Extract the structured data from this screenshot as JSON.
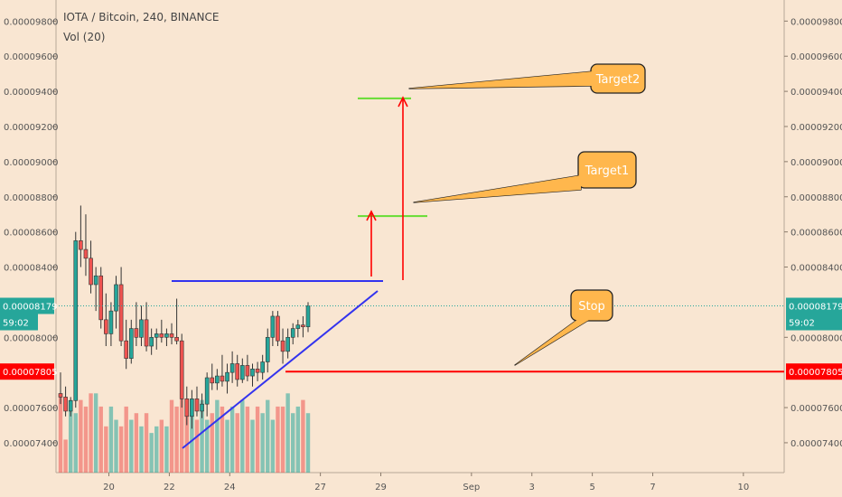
{
  "header": {
    "title": "IOTA / Bitcoin, 240, BINANCE",
    "volume_label": "Vol (20)"
  },
  "chart_data": {
    "type": "candlestick",
    "symbol": "IOTA / Bitcoin",
    "interval": "240",
    "exchange": "BINANCE",
    "y_ticks": [
      "0.00009800",
      "0.00009600",
      "0.00009400",
      "0.00009200",
      "0.00009000",
      "0.00008800",
      "0.00008600",
      "0.00008400",
      "0.00008000",
      "0.00007600",
      "0.00007400"
    ],
    "y_tick_values": [
      9.8e-05,
      9.6e-05,
      9.4e-05,
      9.2e-05,
      9e-05,
      8.8e-05,
      8.6e-05,
      8.4e-05,
      8e-05,
      7.6e-05,
      7.4e-05
    ],
    "ylim": [
      7.23e-05,
      9.92e-05
    ],
    "x_ticks": [
      {
        "label": "20",
        "day": 20
      },
      {
        "label": "22",
        "day": 22
      },
      {
        "label": "24",
        "day": 24
      },
      {
        "label": "27",
        "day": 27
      },
      {
        "label": "29",
        "day": 29
      },
      {
        "label": "Sep",
        "day": 32
      },
      {
        "label": "3",
        "day": 34
      },
      {
        "label": "5",
        "day": 36
      },
      {
        "label": "7",
        "day": 38
      },
      {
        "label": "10",
        "day": 41
      }
    ],
    "xlim": [
      18.25,
      42.35
    ],
    "current_price": {
      "label": "0.00008179",
      "countdown": "59:02",
      "value": 8.179e-05,
      "color": "#26a69a"
    },
    "stop_price": {
      "label": "0.00007805",
      "value": 7.805e-05,
      "color": "#ff0000"
    },
    "candles": [
      {
        "o": 7.68,
        "h": 7.8,
        "l": 7.62,
        "c": 7.66
      },
      {
        "o": 7.66,
        "h": 7.72,
        "l": 7.55,
        "c": 7.58
      },
      {
        "o": 7.58,
        "h": 7.66,
        "l": 7.55,
        "c": 7.64
      },
      {
        "o": 7.64,
        "h": 8.6,
        "l": 7.6,
        "c": 8.55
      },
      {
        "o": 8.55,
        "h": 8.75,
        "l": 8.4,
        "c": 8.5
      },
      {
        "o": 8.5,
        "h": 8.7,
        "l": 8.35,
        "c": 8.45
      },
      {
        "o": 8.45,
        "h": 8.55,
        "l": 8.25,
        "c": 8.3
      },
      {
        "o": 8.3,
        "h": 8.4,
        "l": 8.15,
        "c": 8.35
      },
      {
        "o": 8.35,
        "h": 8.4,
        "l": 8.05,
        "c": 8.1
      },
      {
        "o": 8.1,
        "h": 8.25,
        "l": 7.95,
        "c": 8.02
      },
      {
        "o": 8.02,
        "h": 8.2,
        "l": 7.95,
        "c": 8.15
      },
      {
        "o": 8.15,
        "h": 8.35,
        "l": 8.05,
        "c": 8.3
      },
      {
        "o": 8.3,
        "h": 8.4,
        "l": 7.95,
        "c": 7.98
      },
      {
        "o": 7.98,
        "h": 8.1,
        "l": 7.82,
        "c": 7.88
      },
      {
        "o": 7.88,
        "h": 8.1,
        "l": 7.85,
        "c": 8.05
      },
      {
        "o": 8.05,
        "h": 8.2,
        "l": 7.95,
        "c": 8.0
      },
      {
        "o": 8.0,
        "h": 8.18,
        "l": 7.95,
        "c": 8.1
      },
      {
        "o": 8.1,
        "h": 8.2,
        "l": 7.92,
        "c": 7.95
      },
      {
        "o": 7.95,
        "h": 8.05,
        "l": 7.9,
        "c": 8.0
      },
      {
        "o": 8.0,
        "h": 8.05,
        "l": 7.93,
        "c": 8.02
      },
      {
        "o": 8.02,
        "h": 8.1,
        "l": 7.97,
        "c": 8.0
      },
      {
        "o": 8.0,
        "h": 8.05,
        "l": 7.95,
        "c": 8.02
      },
      {
        "o": 8.02,
        "h": 8.08,
        "l": 7.96,
        "c": 8.0
      },
      {
        "o": 8.0,
        "h": 8.22,
        "l": 7.96,
        "c": 7.98
      },
      {
        "o": 7.98,
        "h": 8.02,
        "l": 7.6,
        "c": 7.65
      },
      {
        "o": 7.65,
        "h": 7.72,
        "l": 7.5,
        "c": 7.55
      },
      {
        "o": 7.55,
        "h": 7.7,
        "l": 7.48,
        "c": 7.65
      },
      {
        "o": 7.65,
        "h": 7.72,
        "l": 7.55,
        "c": 7.58
      },
      {
        "o": 7.58,
        "h": 7.68,
        "l": 7.54,
        "c": 7.62
      },
      {
        "o": 7.62,
        "h": 7.8,
        "l": 7.55,
        "c": 7.77
      },
      {
        "o": 7.77,
        "h": 7.85,
        "l": 7.7,
        "c": 7.74
      },
      {
        "o": 7.74,
        "h": 7.82,
        "l": 7.7,
        "c": 7.78
      },
      {
        "o": 7.78,
        "h": 7.9,
        "l": 7.72,
        "c": 7.75
      },
      {
        "o": 7.75,
        "h": 7.85,
        "l": 7.68,
        "c": 7.8
      },
      {
        "o": 7.8,
        "h": 7.92,
        "l": 7.74,
        "c": 7.85
      },
      {
        "o": 7.85,
        "h": 7.9,
        "l": 7.72,
        "c": 7.76
      },
      {
        "o": 7.76,
        "h": 7.88,
        "l": 7.74,
        "c": 7.84
      },
      {
        "o": 7.84,
        "h": 7.9,
        "l": 7.75,
        "c": 7.78
      },
      {
        "o": 7.78,
        "h": 7.85,
        "l": 7.72,
        "c": 7.82
      },
      {
        "o": 7.82,
        "h": 7.86,
        "l": 7.75,
        "c": 7.8
      },
      {
        "o": 7.8,
        "h": 7.9,
        "l": 7.76,
        "c": 7.86
      },
      {
        "o": 7.86,
        "h": 8.05,
        "l": 7.8,
        "c": 8.0
      },
      {
        "o": 8.0,
        "h": 8.15,
        "l": 7.95,
        "c": 8.12
      },
      {
        "o": 8.12,
        "h": 8.15,
        "l": 7.95,
        "c": 7.98
      },
      {
        "o": 7.98,
        "h": 8.05,
        "l": 7.85,
        "c": 7.92
      },
      {
        "o": 7.92,
        "h": 8.05,
        "l": 7.88,
        "c": 8.0
      },
      {
        "o": 8.0,
        "h": 8.08,
        "l": 7.96,
        "c": 8.05
      },
      {
        "o": 8.05,
        "h": 8.1,
        "l": 8.0,
        "c": 8.07
      },
      {
        "o": 8.07,
        "h": 8.12,
        "l": 8.0,
        "c": 8.06
      },
      {
        "o": 8.06,
        "h": 8.2,
        "l": 8.03,
        "c": 8.179
      }
    ],
    "volumes": [
      12,
      5,
      11,
      9,
      11,
      10,
      12,
      12,
      10,
      7,
      10,
      8,
      7,
      10,
      8,
      9,
      7,
      9,
      6,
      7,
      8,
      7,
      11,
      10,
      12,
      10,
      9,
      8,
      11,
      8,
      9,
      11,
      10,
      8,
      10,
      9,
      11,
      10,
      8,
      10,
      9,
      11,
      8,
      10,
      10,
      12,
      9,
      10,
      11,
      9
    ],
    "volume_max": 13,
    "annotations": [
      {
        "label": "Target2",
        "level": 9.36e-05
      },
      {
        "label": "Target1",
        "level": 8.69e-05
      },
      {
        "label": "Stop",
        "level": 7.805e-05
      }
    ],
    "colors": {
      "up": "#26a69a",
      "down": "#ef5350",
      "trendline": "#3333ee",
      "target_line": "#66dd33",
      "stop_line": "#ff0000",
      "arrow": "#ff0000",
      "callout_fill": "#ffb74d",
      "background": "#f9e6d2"
    },
    "grid": false,
    "scale_position": "both-sides"
  }
}
